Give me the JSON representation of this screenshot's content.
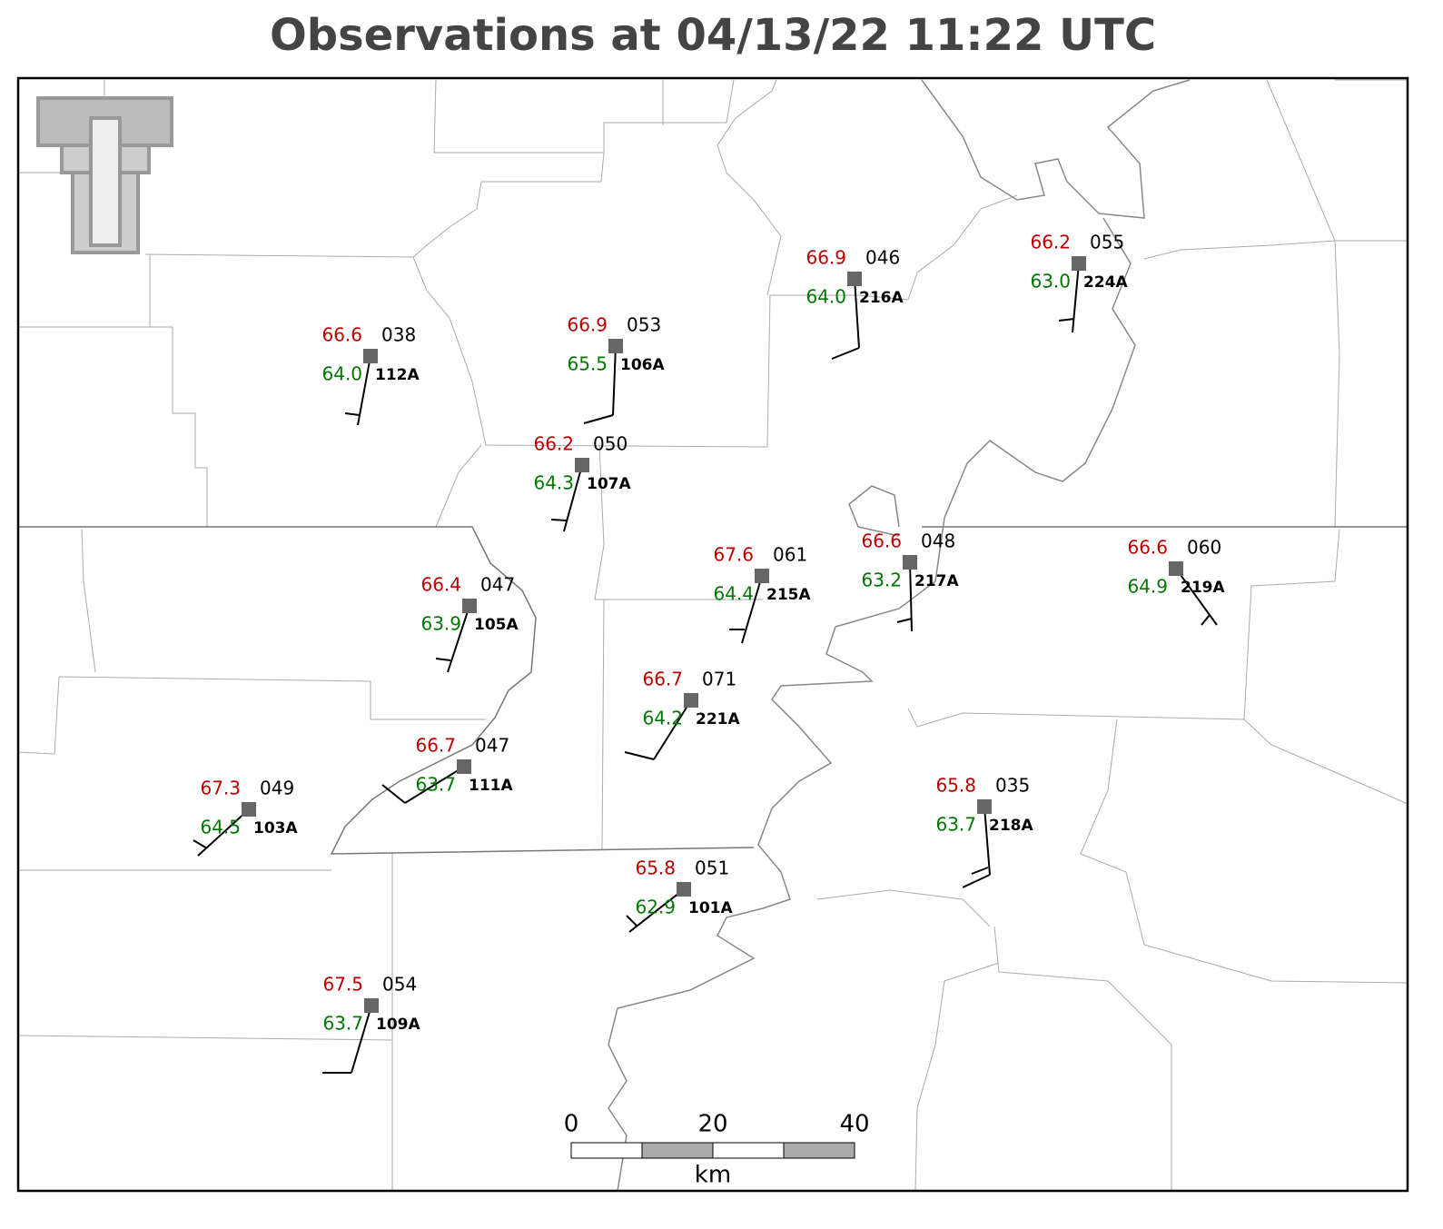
{
  "title": "Observations at 04/13/22 11:22 UTC",
  "stations": [
    {
      "id": "112A",
      "temperature": "66.6",
      "pressure": "038",
      "dewpoint": "64.0"
    },
    {
      "id": "106A",
      "temperature": "66.9",
      "pressure": "053",
      "dewpoint": "65.5"
    },
    {
      "id": "107A",
      "temperature": "66.2",
      "pressure": "050",
      "dewpoint": "64.3"
    },
    {
      "id": "216A",
      "temperature": "66.9",
      "pressure": "046",
      "dewpoint": "64.0"
    },
    {
      "id": "224A",
      "temperature": "66.2",
      "pressure": "055",
      "dewpoint": "63.0"
    },
    {
      "id": "105A",
      "temperature": "66.4",
      "pressure": "047",
      "dewpoint": "63.9"
    },
    {
      "id": "215A",
      "temperature": "67.6",
      "pressure": "061",
      "dewpoint": "64.4"
    },
    {
      "id": "217A",
      "temperature": "66.6",
      "pressure": "048",
      "dewpoint": "63.2"
    },
    {
      "id": "219A",
      "temperature": "66.6",
      "pressure": "060",
      "dewpoint": "64.9"
    },
    {
      "id": "221A",
      "temperature": "66.7",
      "pressure": "071",
      "dewpoint": "64.2"
    },
    {
      "id": "111A",
      "temperature": "66.7",
      "pressure": "047",
      "dewpoint": "63.7"
    },
    {
      "id": "103A",
      "temperature": "67.3",
      "pressure": "049",
      "dewpoint": "64.5"
    },
    {
      "id": "218A",
      "temperature": "65.8",
      "pressure": "035",
      "dewpoint": "63.7"
    },
    {
      "id": "101A",
      "temperature": "65.8",
      "pressure": "051",
      "dewpoint": "62.9"
    },
    {
      "id": "109A",
      "temperature": "67.5",
      "pressure": "054",
      "dewpoint": "63.7"
    }
  ],
  "scale_bar": {
    "labels": [
      "0",
      "20",
      "40"
    ],
    "unit": "km"
  }
}
